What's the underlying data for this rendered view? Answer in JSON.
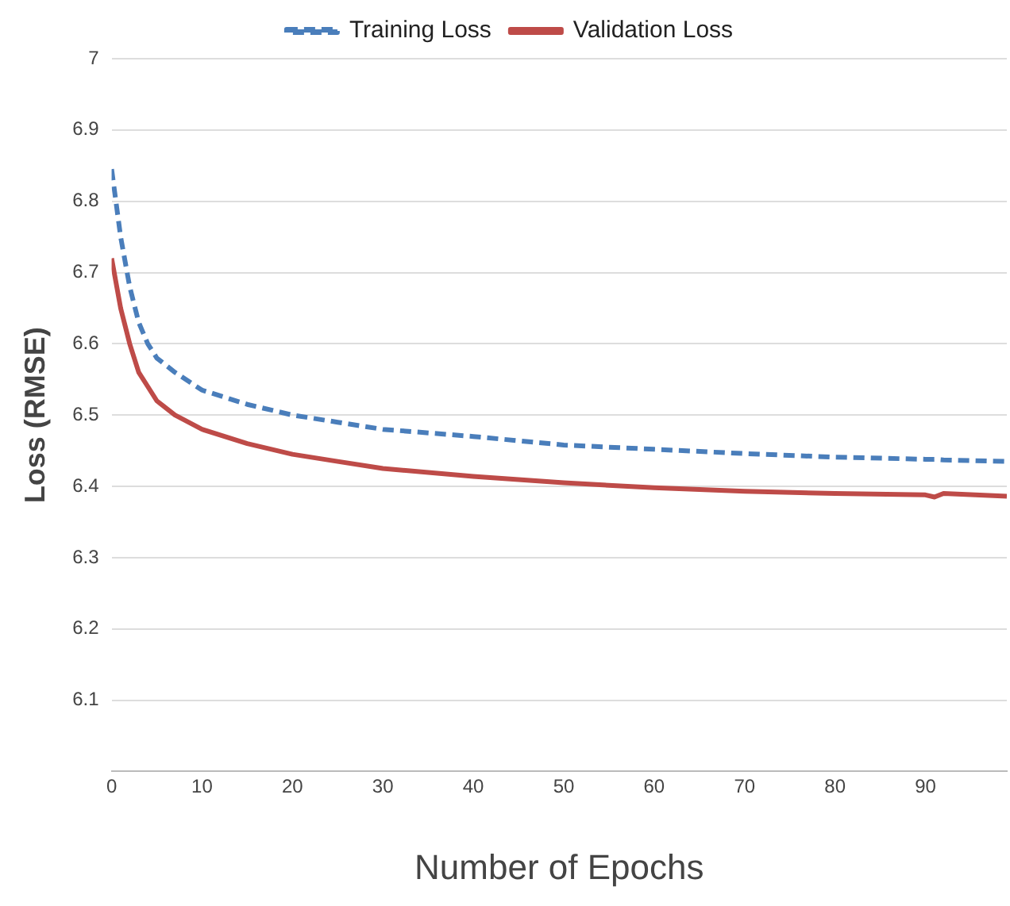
{
  "chart_data": {
    "type": "line",
    "xlabel": "Number of Epochs",
    "ylabel": "Loss (RMSE)",
    "x": [
      0,
      1,
      2,
      3,
      4,
      5,
      7,
      10,
      15,
      20,
      25,
      30,
      40,
      50,
      60,
      70,
      80,
      90,
      91,
      92,
      99
    ],
    "series": [
      {
        "name": "Training Loss",
        "color": "#4a7ebb",
        "line_style": "dashed",
        "values": [
          6.845,
          6.75,
          6.68,
          6.63,
          6.6,
          6.58,
          6.56,
          6.535,
          6.515,
          6.5,
          6.49,
          6.48,
          6.47,
          6.458,
          6.452,
          6.446,
          6.441,
          6.438,
          6.438,
          6.437,
          6.435
        ]
      },
      {
        "name": "Validation Loss",
        "color": "#be4b48",
        "line_style": "solid",
        "values": [
          6.72,
          6.65,
          6.6,
          6.56,
          6.54,
          6.52,
          6.5,
          6.48,
          6.46,
          6.445,
          6.435,
          6.425,
          6.414,
          6.405,
          6.398,
          6.393,
          6.39,
          6.388,
          6.385,
          6.39,
          6.386
        ]
      }
    ],
    "xlim": [
      0,
      99
    ],
    "xticks": [
      0,
      10,
      20,
      30,
      40,
      50,
      60,
      70,
      80,
      90
    ],
    "ylim": [
      6,
      7
    ],
    "yticks": [
      {
        "value": 6,
        "label": null
      },
      6.1,
      6.2,
      6.3,
      6.4,
      6.5,
      6.6,
      6.7,
      6.8,
      6.9,
      7
    ],
    "grid": "y",
    "legend": "top",
    "marker": "none"
  }
}
